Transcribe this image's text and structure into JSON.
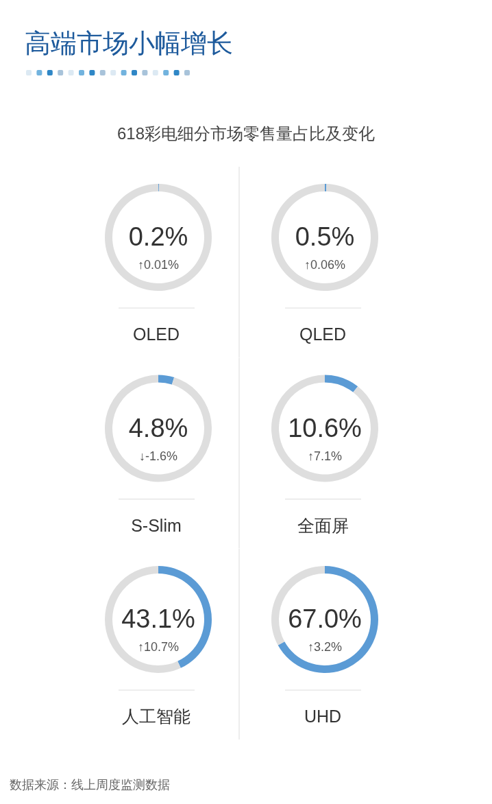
{
  "chart_data": [
    {
      "type": "other",
      "title": "高端市场小幅增长",
      "subtitle": "618彩电细分市场零售量占比及变化"
    },
    {
      "type": "donut",
      "title": "OLED",
      "categories": [
        null,
        null
      ],
      "values": [
        0.2,
        99.8
      ],
      "colors": [
        "#5b9bd5",
        "#dedede"
      ],
      "value_labels": [
        "0.2%",
        null
      ],
      "annotations": [
        "↑0.01%"
      ]
    },
    {
      "type": "donut",
      "title": "QLED",
      "categories": [
        null,
        null
      ],
      "values": [
        0.5,
        99.5
      ],
      "colors": [
        "#5b9bd5",
        "#dedede"
      ],
      "value_labels": [
        "0.5%",
        null
      ],
      "annotations": [
        "↑0.06%"
      ]
    },
    {
      "type": "donut",
      "title": "S-Slim",
      "categories": [
        null,
        null
      ],
      "values": [
        4.8,
        95.2
      ],
      "colors": [
        "#5b9bd5",
        "#dedede"
      ],
      "value_labels": [
        "4.8%",
        null
      ],
      "annotations": [
        "↓-1.6%"
      ]
    },
    {
      "type": "donut",
      "title": "全面屏",
      "categories": [
        null,
        null
      ],
      "values": [
        10.6,
        89.4
      ],
      "colors": [
        "#5b9bd5",
        "#dedede"
      ],
      "value_labels": [
        "10.6%",
        null
      ],
      "annotations": [
        "↑7.1%"
      ]
    },
    {
      "type": "donut",
      "title": "人工智能",
      "categories": [
        null,
        null
      ],
      "values": [
        43.1,
        56.9
      ],
      "colors": [
        "#5b9bd5",
        "#dedede"
      ],
      "value_labels": [
        "43.1%",
        null
      ],
      "annotations": [
        "↑10.7%"
      ]
    },
    {
      "type": "donut",
      "title": "UHD",
      "categories": [
        null,
        null
      ],
      "values": [
        67.0,
        33.0
      ],
      "colors": [
        "#5b9bd5",
        "#dedede"
      ],
      "value_labels": [
        "67.0%",
        null
      ],
      "annotations": [
        "↑3.2%"
      ]
    },
    {
      "type": "other",
      "annotations": [
        "数据来源：线上周度监测数据"
      ]
    }
  ]
}
